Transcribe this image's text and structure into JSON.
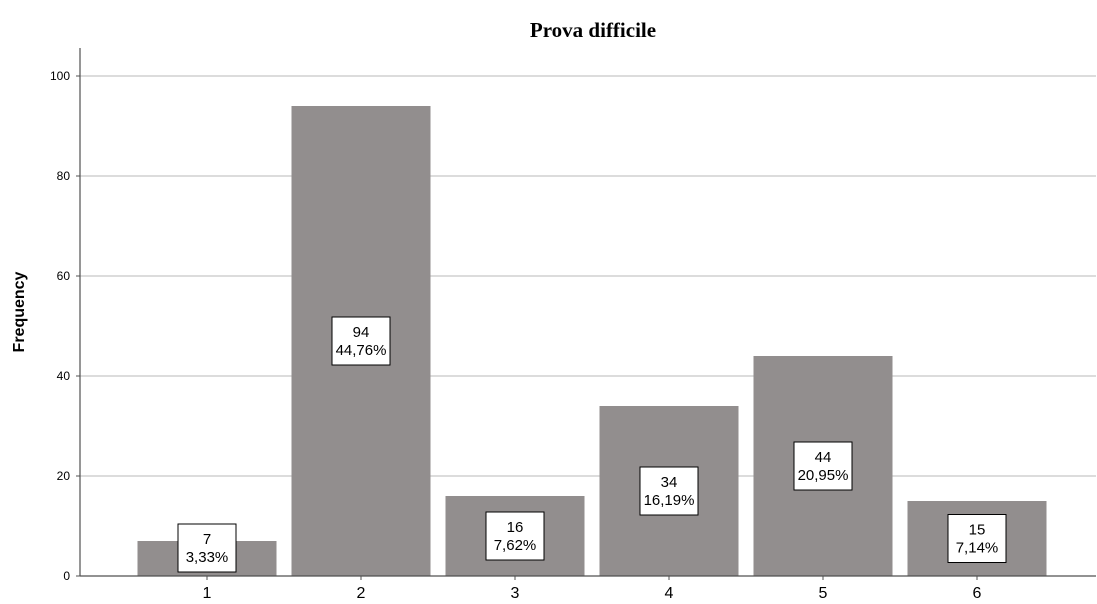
{
  "chart_data": {
    "type": "bar",
    "title": "Prova difficile",
    "xlabel": "",
    "ylabel": "Frequency",
    "categories": [
      "1",
      "2",
      "3",
      "4",
      "5",
      "6"
    ],
    "values": [
      7,
      94,
      16,
      34,
      44,
      15
    ],
    "data_labels": [
      [
        "7",
        "3,33%"
      ],
      [
        "94",
        "44,76%"
      ],
      [
        "16",
        "7,62%"
      ],
      [
        "34",
        "16,19%"
      ],
      [
        "44",
        "20,95%"
      ],
      [
        "15",
        "7,14%"
      ]
    ],
    "ylim": [
      0,
      100
    ],
    "yticks": [
      0,
      20,
      40,
      60,
      80,
      100
    ],
    "grid": true,
    "legend": "none",
    "colors": {
      "bar": "#928e8e",
      "grid": "#c8c8c8",
      "axis": "#505050",
      "label_box_fill": "#ffffff",
      "label_box_stroke": "#000000"
    }
  }
}
